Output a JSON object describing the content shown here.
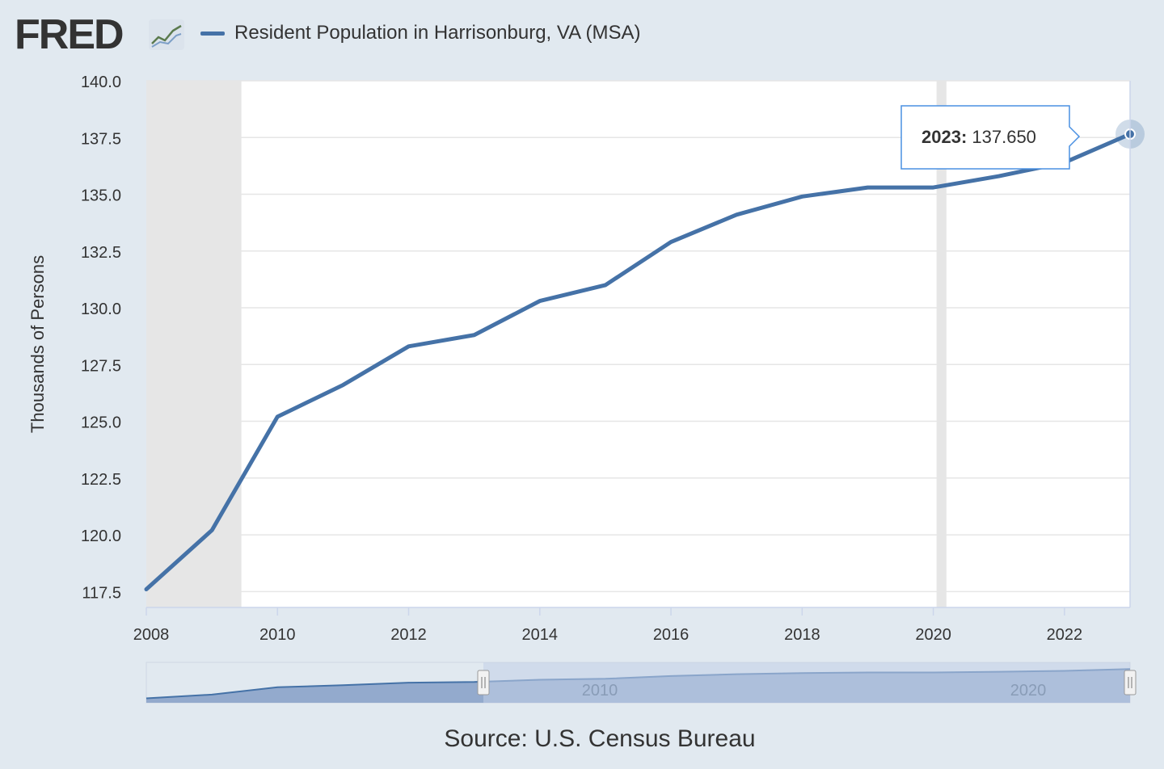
{
  "header": {
    "logo_text": "FRED",
    "legend_label": "Resident Population in Harrisonburg, VA (MSA)"
  },
  "colors": {
    "series": "#4572a7",
    "recession": "#e6e6e6",
    "tooltip_border": "#4a90e2",
    "navigator_fill": "#8ba3c9",
    "navigator_mask": "#c3d0e7"
  },
  "chart_data": {
    "type": "line",
    "ylabel": "Thousands of Persons",
    "ylim": [
      116.8,
      140.0
    ],
    "yticks": [
      "117.5",
      "120.0",
      "122.5",
      "125.0",
      "127.5",
      "130.0",
      "132.5",
      "135.0",
      "137.5",
      "140.0"
    ],
    "xlim": [
      2008,
      2023
    ],
    "xticks": [
      "2008",
      "2010",
      "2012",
      "2014",
      "2016",
      "2018",
      "2020",
      "2022"
    ],
    "grid": true,
    "series": [
      {
        "name": "Resident Population in Harrisonburg, VA (MSA)",
        "x": [
          2008,
          2009,
          2010,
          2011,
          2012,
          2013,
          2014,
          2015,
          2016,
          2017,
          2018,
          2019,
          2020,
          2021,
          2022,
          2023
        ],
        "values": [
          117.6,
          120.2,
          125.2,
          126.6,
          128.3,
          128.8,
          130.3,
          131.0,
          132.9,
          134.1,
          134.9,
          135.3,
          135.3,
          135.8,
          136.4,
          137.65
        ]
      }
    ],
    "recessions": [
      {
        "start": 2008.0,
        "end": 2009.45
      },
      {
        "start": 2020.05,
        "end": 2020.2
      }
    ],
    "tooltip": {
      "label": "2023:",
      "value": "137.650"
    },
    "navigator": {
      "labels": [
        "2010",
        "2020"
      ]
    }
  },
  "source": "Source: U.S. Census Bureau"
}
